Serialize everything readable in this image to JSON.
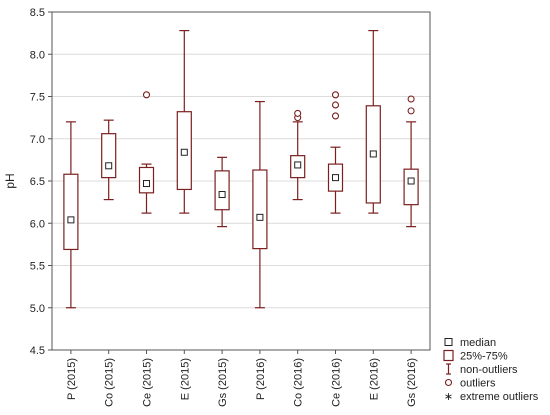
{
  "chart_data": {
    "type": "boxplot",
    "title": "",
    "xlabel": "",
    "ylabel": "pH",
    "ylim": [
      4.5,
      8.5
    ],
    "yticks": [
      "4.5",
      "5.0",
      "5.5",
      "6.0",
      "6.5",
      "7.0",
      "7.5",
      "8.0",
      "8.5"
    ],
    "grid": true,
    "legend_position": "bottom-right",
    "categories": [
      "P (2015)",
      "Co (2015)",
      "Ce (2015)",
      "E (2015)",
      "Gs (2015)",
      "P (2016)",
      "Co (2016)",
      "Ce (2016)",
      "E (2016)",
      "Gs (2016)"
    ],
    "boxes": [
      {
        "median": 6.04,
        "q1": 5.69,
        "q3": 6.58,
        "whisker_low": 5.0,
        "whisker_high": 7.2,
        "outliers": []
      },
      {
        "median": 6.68,
        "q1": 6.54,
        "q3": 7.06,
        "whisker_low": 6.28,
        "whisker_high": 7.22,
        "outliers": []
      },
      {
        "median": 6.47,
        "q1": 6.36,
        "q3": 6.66,
        "whisker_low": 6.12,
        "whisker_high": 6.7,
        "outliers": [
          7.52
        ]
      },
      {
        "median": 6.84,
        "q1": 6.4,
        "q3": 7.32,
        "whisker_low": 6.12,
        "whisker_high": 8.28,
        "outliers": []
      },
      {
        "median": 6.34,
        "q1": 6.16,
        "q3": 6.62,
        "whisker_low": 5.96,
        "whisker_high": 6.78,
        "outliers": []
      },
      {
        "median": 6.07,
        "q1": 5.7,
        "q3": 6.63,
        "whisker_low": 5.0,
        "whisker_high": 7.44,
        "outliers": []
      },
      {
        "median": 6.69,
        "q1": 6.54,
        "q3": 6.8,
        "whisker_low": 6.28,
        "whisker_high": 7.2,
        "outliers": [
          7.25,
          7.3
        ]
      },
      {
        "median": 6.54,
        "q1": 6.38,
        "q3": 6.7,
        "whisker_low": 6.12,
        "whisker_high": 6.9,
        "outliers": [
          7.27,
          7.4,
          7.52
        ]
      },
      {
        "median": 6.82,
        "q1": 6.24,
        "q3": 7.39,
        "whisker_low": 6.12,
        "whisker_high": 8.28,
        "outliers": []
      },
      {
        "median": 6.5,
        "q1": 6.22,
        "q3": 6.64,
        "whisker_low": 5.96,
        "whisker_high": 7.2,
        "outliers": [
          7.33,
          7.47
        ]
      }
    ],
    "legend": [
      {
        "symbol": "median-square",
        "label": "median"
      },
      {
        "symbol": "box",
        "label": "25%-75%"
      },
      {
        "symbol": "whisker",
        "label": "non-outliers"
      },
      {
        "symbol": "circle",
        "label": "outliers"
      },
      {
        "symbol": "star",
        "label": "extreme outliers"
      }
    ],
    "colors": {
      "box": "#7b1f1f",
      "grid": "#dcdcdc",
      "frame": "#555555"
    }
  }
}
